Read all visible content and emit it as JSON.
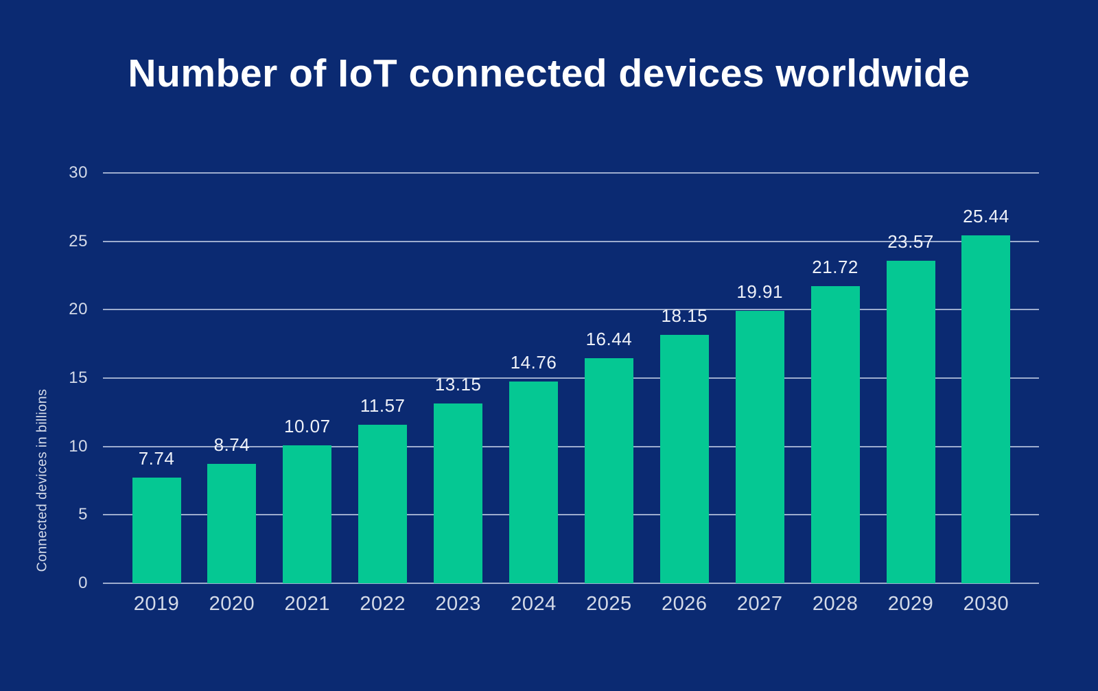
{
  "title": "Number of IoT connected devices worldwide",
  "y_axis_title": "Connected devices in billions",
  "chart_data": {
    "type": "bar",
    "title": "Number of IoT connected devices worldwide",
    "xlabel": "",
    "ylabel": "Connected devices in billions",
    "categories": [
      "2019",
      "2020",
      "2021",
      "2022",
      "2023",
      "2024",
      "2025",
      "2026",
      "2027",
      "2028",
      "2029",
      "2030"
    ],
    "values": [
      7.74,
      8.74,
      10.07,
      11.57,
      13.15,
      14.76,
      16.44,
      18.15,
      19.91,
      21.72,
      23.57,
      25.44
    ],
    "value_labels": [
      "7.74",
      "8.74",
      "10.07",
      "11.57",
      "13.15",
      "14.76",
      "16.44",
      "18.15",
      "19.91",
      "21.72",
      "23.57",
      "25.44"
    ],
    "ylim": [
      0,
      30
    ],
    "yticks": [
      0,
      5,
      10,
      15,
      20,
      25,
      30
    ],
    "grid": true,
    "legend": false,
    "colors": {
      "background": "#0b2a72",
      "bar": "#05c893",
      "gridline": "#b9c4de",
      "title_text": "#ffffff",
      "axis_text": "#d4dae8",
      "value_label_text": "#eef1f8"
    }
  }
}
